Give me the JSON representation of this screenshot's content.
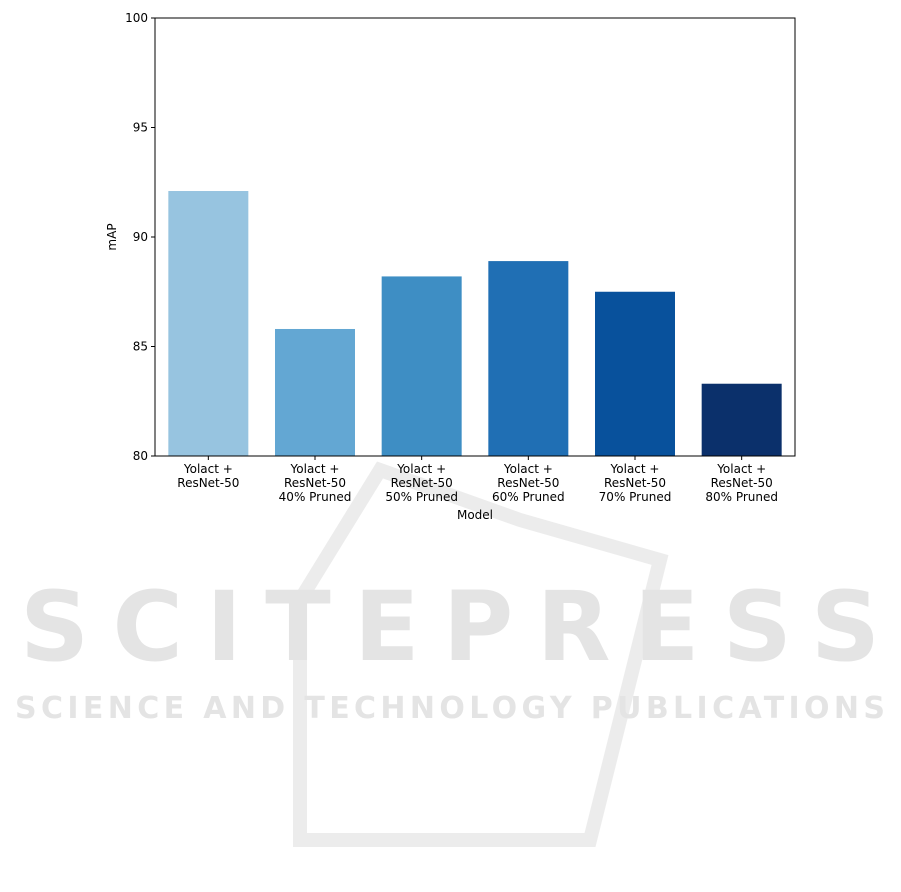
{
  "chart_data": {
    "type": "bar",
    "categories": [
      "Yolact +\nResNet-50",
      "Yolact +\nResNet-50\n40% Pruned",
      "Yolact +\nResNet-50\n50% Pruned",
      "Yolact +\nResNet-50\n60% Pruned",
      "Yolact +\nResNet-50\n70% Pruned",
      "Yolact +\nResNet-50\n80% Pruned"
    ],
    "values": [
      92.1,
      85.8,
      88.2,
      88.9,
      87.5,
      83.3
    ],
    "colors": [
      "#97c4e0",
      "#63a7d3",
      "#3e8ec4",
      "#206fb4",
      "#08519c",
      "#0b306b"
    ],
    "xlabel": "Model",
    "ylabel": "mAP",
    "ylim": [
      80,
      100
    ],
    "yticks": [
      80,
      85,
      90,
      95,
      100
    ],
    "grid": false
  },
  "watermark": {
    "title": "SCITEPRESS",
    "subtitle": "SCIENCE AND TECHNOLOGY PUBLICATIONS"
  }
}
